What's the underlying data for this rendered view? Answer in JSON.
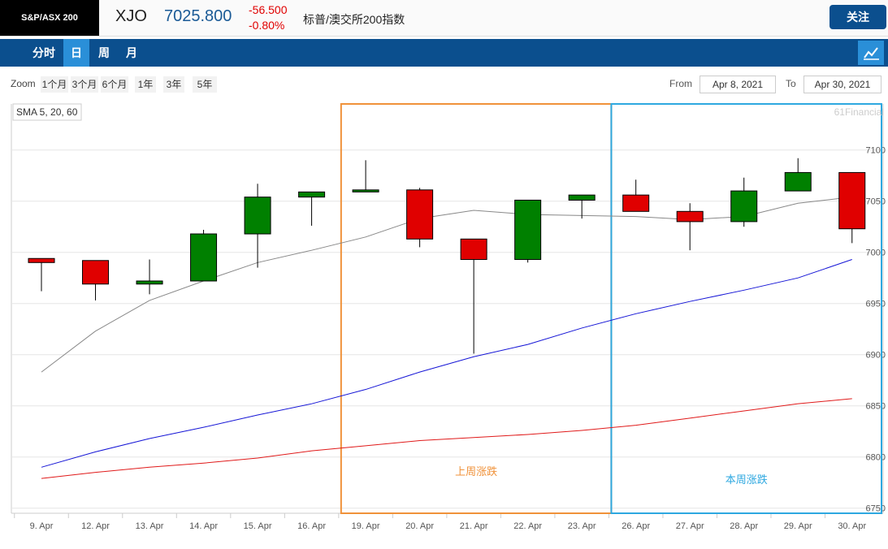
{
  "header": {
    "logo": "S&P/ASX 200",
    "symbol": "XJO",
    "price": "7025.800",
    "change": "-56.500",
    "change_pct": "-0.80%",
    "name": "标普/澳交所200指数",
    "follow": "关注"
  },
  "tabs": [
    "分时",
    "日",
    "周",
    "月"
  ],
  "toolbar": {
    "zoom": "Zoom",
    "ranges": [
      "1个月",
      "3个月",
      "6个月",
      "1年",
      "3年",
      "5年"
    ],
    "from_label": "From",
    "from": "Apr 8, 2021",
    "to_label": "To",
    "to": "Apr 30, 2021"
  },
  "chart_data": {
    "type": "candlestick",
    "legend_label": "SMA 5, 20, 60",
    "watermark": "61Financial",
    "categories": [
      "9. Apr",
      "12. Apr",
      "13. Apr",
      "14. Apr",
      "15. Apr",
      "16. Apr",
      "19. Apr",
      "20. Apr",
      "21. Apr",
      "22. Apr",
      "23. Apr",
      "26. Apr",
      "27. Apr",
      "28. Apr",
      "29. Apr",
      "30. Apr"
    ],
    "open": [
      6994,
      6992,
      6969,
      6972,
      7018,
      7054,
      7059,
      7061,
      7013,
      6993,
      7051,
      7056,
      7040,
      7030,
      7060,
      7078
    ],
    "high": [
      6994,
      6992,
      6993,
      7022,
      7067,
      7059,
      7090,
      7063,
      7013,
      7051,
      7056,
      7071,
      7048,
      7073,
      7092,
      7078
    ],
    "low": [
      6962,
      6953,
      6959,
      6972,
      6985,
      7026,
      7059,
      7005,
      6901,
      6990,
      7033,
      7040,
      7002,
      7025,
      7060,
      7009
    ],
    "close": [
      6990,
      6969,
      6972,
      7018,
      7054,
      7059,
      7061,
      7013,
      6993,
      7051,
      7056,
      7040,
      7030,
      7060,
      7078,
      7023
    ],
    "up_color": "#008000",
    "down_color": "#e00000",
    "lines": [
      {
        "color": "#888888",
        "values": [
          6883,
          6923,
          6953,
          6972,
          6990,
          7002,
          7015,
          7033,
          7041,
          7037,
          7036,
          7035,
          7032,
          7035,
          7048,
          7054
        ]
      },
      {
        "color": "#1515d6",
        "values": [
          6790,
          6805,
          6818,
          6829,
          6841,
          6852,
          6866,
          6883,
          6898,
          6910,
          6926,
          6940,
          6952,
          6963,
          6975,
          6993
        ]
      },
      {
        "color": "#e01a1a",
        "values": [
          6779,
          6785,
          6790,
          6794,
          6799,
          6806,
          6811,
          6816,
          6819,
          6822,
          6826,
          6831,
          6838,
          6845,
          6852,
          6857
        ]
      }
    ],
    "annotations": [
      {
        "text": "上周涨跌",
        "color": "#f0923a"
      },
      {
        "text": "本周涨跌",
        "color": "#2ea8e0"
      }
    ],
    "ylim": [
      6745,
      7145
    ],
    "yticks": [
      6750,
      6800,
      6850,
      6900,
      6950,
      7000,
      7050,
      7100
    ],
    "grid": true
  }
}
